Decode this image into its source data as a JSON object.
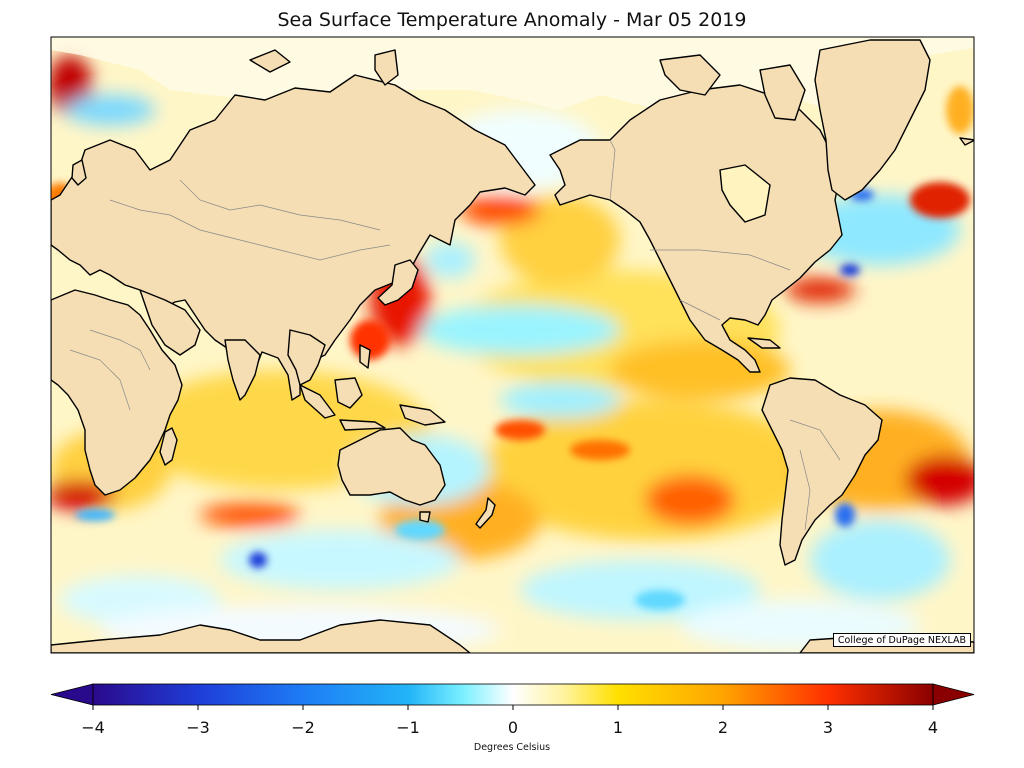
{
  "title": "Sea Surface Temperature Anomaly - Mar 05 2019",
  "credit": "College of DuPage NEXLAB",
  "colorbar": {
    "label": "Degrees Celsius",
    "min": -4,
    "max": 4,
    "ticks": [
      "−4",
      "−3",
      "−2",
      "−1",
      "0",
      "1",
      "2",
      "3",
      "4"
    ],
    "extend": "both",
    "colors": [
      "#2a0a8c",
      "#1f3dd8",
      "#1e7cf5",
      "#22b4f7",
      "#7af0ff",
      "#ffffff",
      "#fff3a0",
      "#ffe000",
      "#ffa400",
      "#ff4a00",
      "#d40000",
      "#8a0000"
    ]
  },
  "map": {
    "land_color": "#f5deb3",
    "coastline_color": "#000000",
    "border_color": "#888888"
  }
}
